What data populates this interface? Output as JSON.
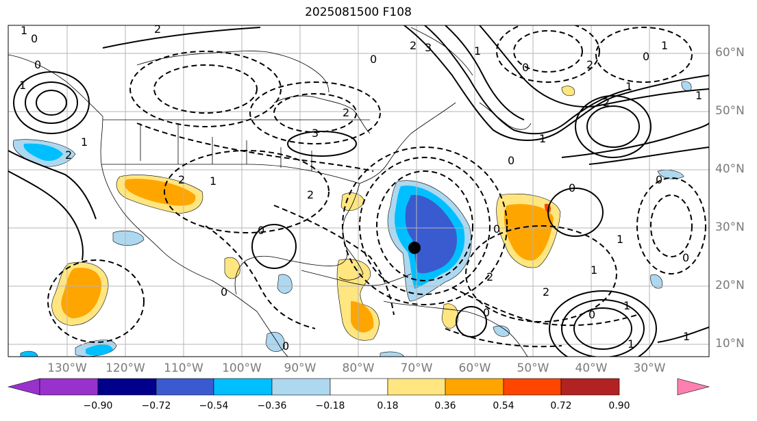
{
  "title": "2025081500 F108",
  "lon_labels": [
    "130°W",
    "120°W",
    "110°W",
    "100°W",
    "90°W",
    "80°W",
    "70°W",
    "60°W",
    "50°W",
    "40°W",
    "30°W"
  ],
  "lat_labels": [
    "60°N",
    "50°N",
    "40°N",
    "30°N",
    "20°N",
    "10°N"
  ],
  "colorbar": {
    "ticks": [
      "−0.90",
      "−0.72",
      "−0.54",
      "−0.36",
      "−0.18",
      "0.18",
      "0.36",
      "0.54",
      "0.72",
      "0.90"
    ],
    "colors": [
      "#9932cc",
      "#00008b",
      "#3a5bcf",
      "#00bfff",
      "#add8f0",
      "#ffffff",
      "#ffe680",
      "#ffa500",
      "#ff4500",
      "#b22222",
      "#ff80b0"
    ]
  },
  "contour_labels": [
    "1",
    "0",
    "2",
    "1",
    "0",
    "2",
    "1",
    "3",
    "2",
    "0",
    "1",
    "2",
    "2",
    "1",
    "1",
    "0",
    "1",
    "2",
    "3",
    "0",
    "0",
    "0",
    "2",
    "2",
    "1",
    "0",
    "1",
    "1",
    "0",
    "1",
    "0",
    "2",
    "0",
    "0",
    "0",
    "1",
    "1",
    "2",
    "0",
    "0",
    "1"
  ],
  "marker": "storm-center-dot"
}
